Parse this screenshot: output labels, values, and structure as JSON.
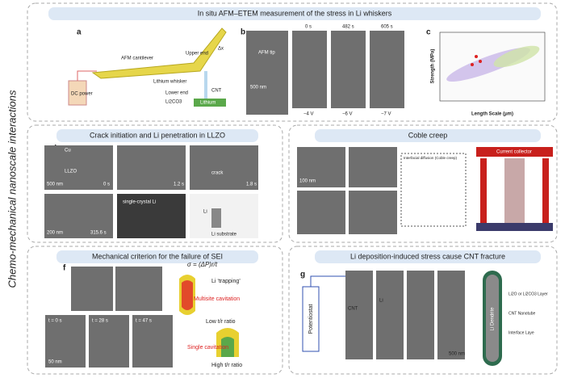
{
  "side_title": "Chemo-mechanical nanoscale interactions",
  "panels": [
    {
      "title": "In situ AFM–ETEM measurement of the stress in Li whiskers",
      "letters": [
        "a",
        "b",
        "c"
      ],
      "labels": [
        "AFM cantilever",
        "Upper end",
        "Lithium whisker",
        "CNT",
        "Lower end",
        "DC power",
        "Li2CO3",
        "Lithium",
        "Δx",
        "AFM tip",
        "0 s",
        "482 s",
        "605 s",
        "−4 V",
        "−6 V",
        "−7 V",
        "500 nm",
        "Strength (MPa)",
        "Length Scale (μm)"
      ]
    },
    {
      "title": "Crack initiation and Li penetration in LLZO",
      "letters": [
        "d"
      ],
      "labels": [
        "Cu",
        "LLZO",
        "500 nm",
        "0 s",
        "1.2 s",
        "1.8 s",
        "crack",
        "200 nm",
        "315.6 s",
        "single-crystal Li",
        "Li",
        "Li substrate"
      ]
    },
    {
      "title": "Coble creep",
      "letters": [
        "e"
      ],
      "labels": [
        "100 nm",
        "Current collector",
        "Interfacial diffusion (Coble creep)"
      ]
    },
    {
      "title": "Mechanical criterion for the failure of SEI",
      "letters": [
        "f"
      ],
      "labels": [
        "σ = (ΔP)r/t",
        "Li ‘trapping’",
        "Multisite cavitation",
        "Low t/r ratio",
        "Single cavitation",
        "High t/r ratio",
        "t = 0 s",
        "t = 28 s",
        "t = 47 s",
        "50 nm"
      ]
    },
    {
      "title": "Li deposition-induced stress cause CNT fracture",
      "letters": [
        "g"
      ],
      "labels": [
        "Potentiostat",
        "CNT",
        "Li",
        "500 nm",
        "Li2O or Li2CO3 Layer",
        "CNT Nanotube",
        "Interface Laye",
        "Li Dendrite"
      ]
    }
  ]
}
